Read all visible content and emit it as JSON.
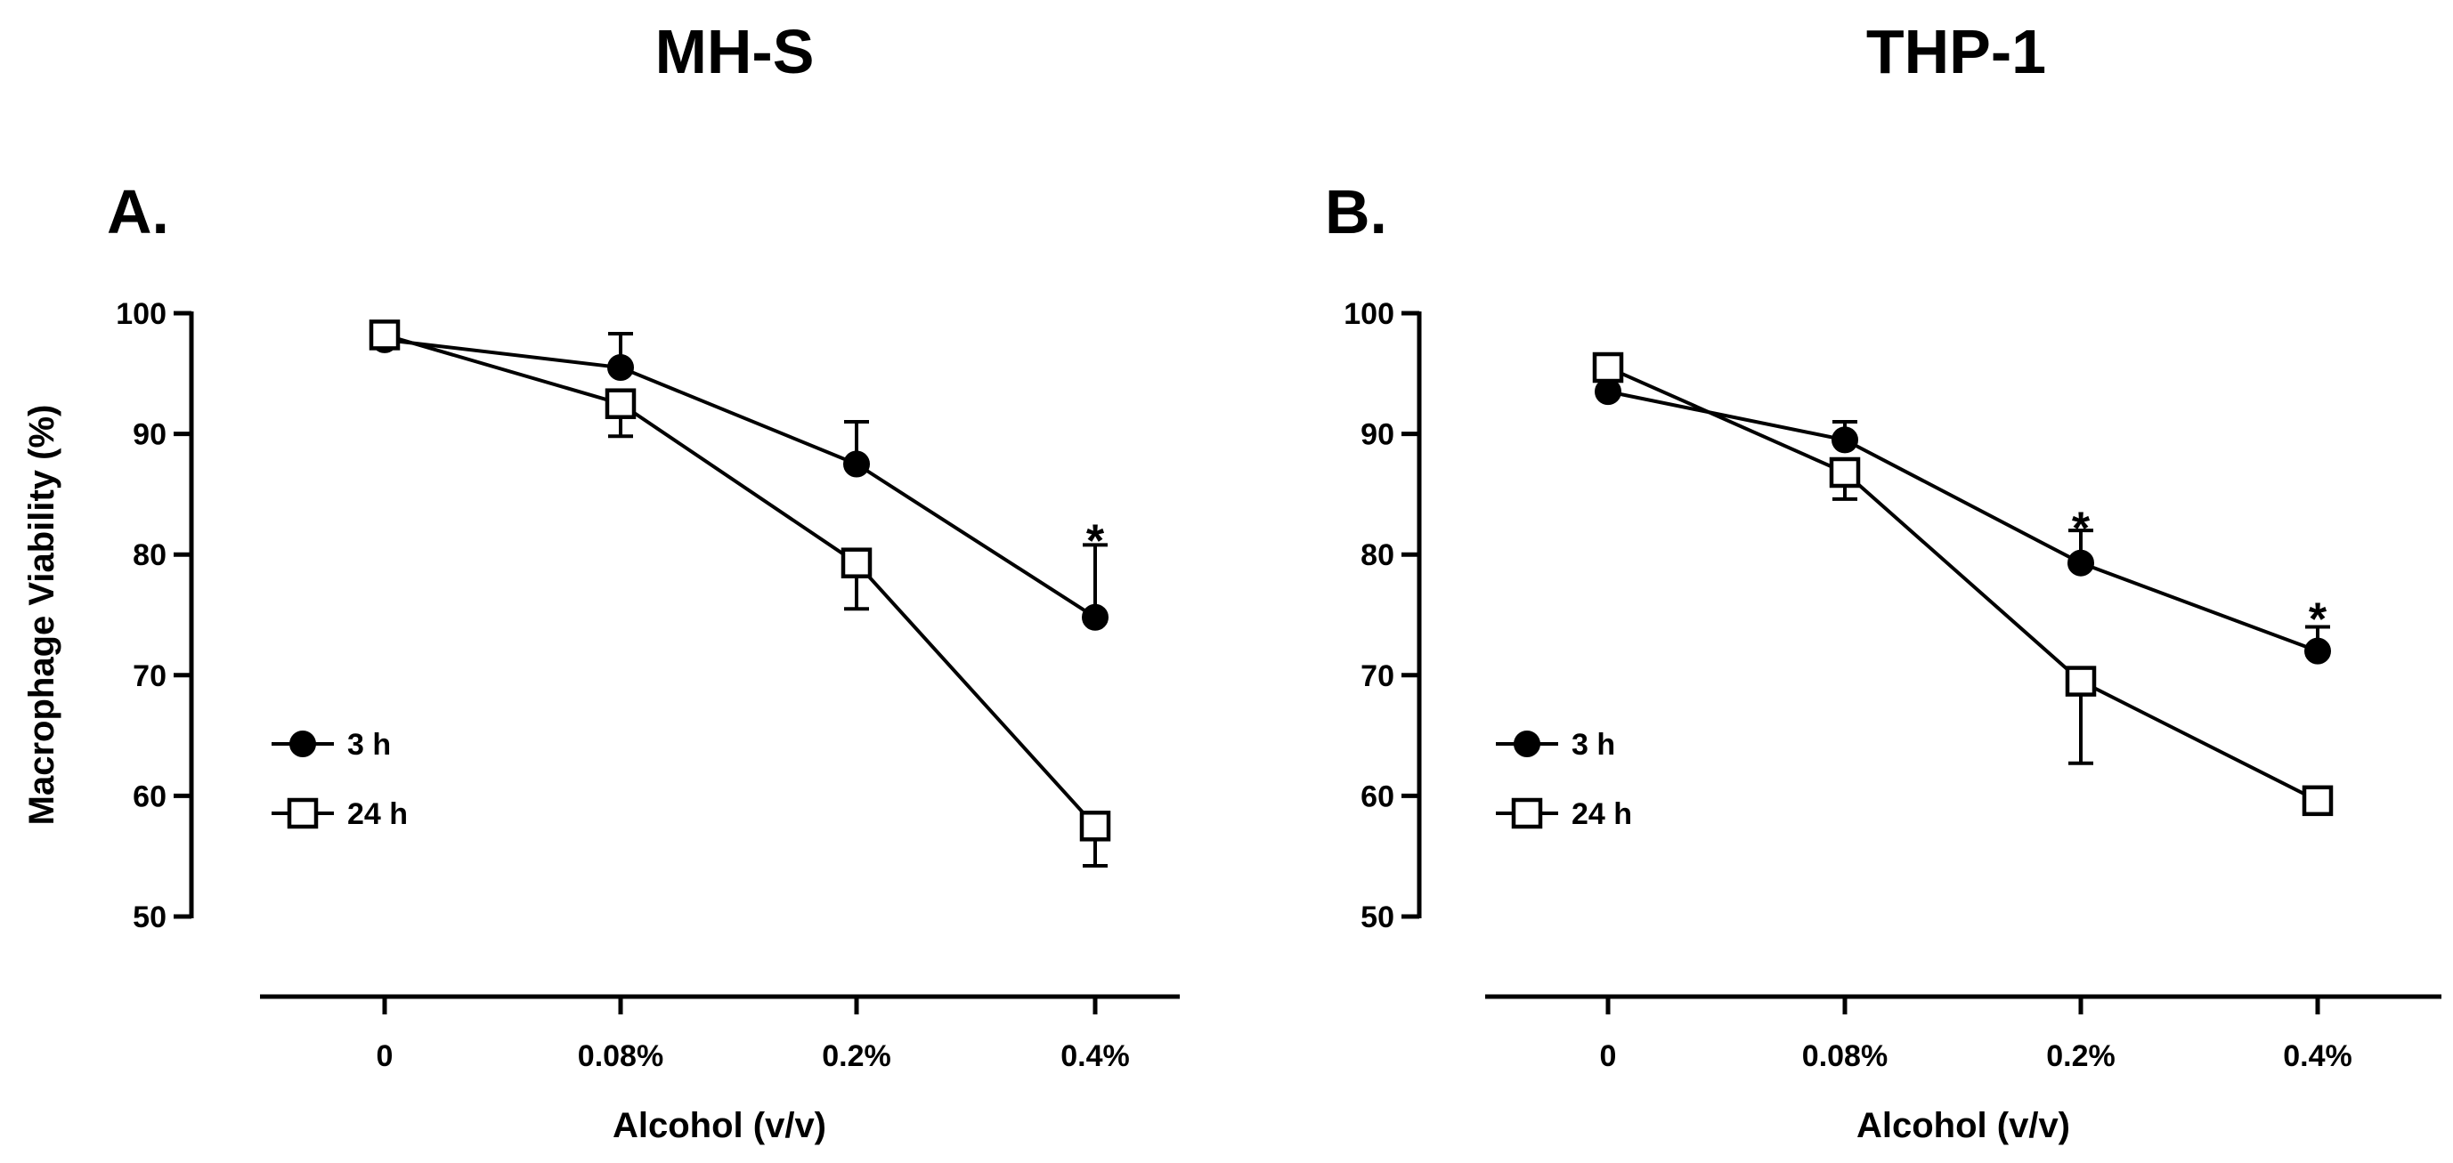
{
  "chart_data": [
    {
      "type": "line",
      "panel": "A.",
      "title": "MH-S",
      "xlabel": "Alcohol (v/v)",
      "ylabel": "Macrophage Viability (%)",
      "categories": [
        "0",
        "0.08%",
        "0.2%",
        "0.4%"
      ],
      "ylim": [
        50,
        100
      ],
      "yticks": [
        "50",
        "60",
        "70",
        "80",
        "90",
        "100"
      ],
      "legend_position": "lower-left",
      "series": [
        {
          "name": "3 h",
          "marker": "filled-circle",
          "values": [
            97.8,
            95.5,
            87.5,
            74.8
          ],
          "err_up": [
            1.5,
            2.8,
            3.5,
            6.0
          ],
          "err_down": [
            0,
            0,
            0,
            0
          ]
        },
        {
          "name": "24 h",
          "marker": "open-square",
          "values": [
            98.2,
            92.5,
            79.3,
            57.5
          ],
          "err_up": [
            0,
            0,
            0,
            0
          ],
          "err_down": [
            1.0,
            2.7,
            3.8,
            3.3
          ]
        }
      ],
      "annotations": [
        {
          "text": "*",
          "category": "0.4%",
          "y": 82.5
        }
      ]
    },
    {
      "type": "line",
      "panel": "B.",
      "title": "THP-1",
      "xlabel": "Alcohol (v/v)",
      "ylabel": "",
      "categories": [
        "0",
        "0.08%",
        "0.2%",
        "0.4%"
      ],
      "ylim": [
        50,
        100
      ],
      "yticks": [
        "50",
        "60",
        "70",
        "80",
        "90",
        "100"
      ],
      "legend_position": "lower-left",
      "series": [
        {
          "name": "3 h",
          "marker": "filled-circle",
          "values": [
            93.5,
            89.5,
            79.3,
            72.0
          ],
          "err_up": [
            0,
            1.5,
            2.7,
            2.0
          ],
          "err_down": [
            0,
            0,
            0,
            0
          ]
        },
        {
          "name": "24 h",
          "marker": "open-square",
          "values": [
            95.5,
            86.8,
            69.5,
            59.6
          ],
          "err_up": [
            0,
            0,
            0,
            0
          ],
          "err_down": [
            0,
            2.2,
            6.8,
            0.5
          ]
        }
      ],
      "annotations": [
        {
          "text": "*",
          "category": "0.2%",
          "y": 83.5
        },
        {
          "text": "*",
          "category": "0.4%",
          "y": 76.0
        }
      ]
    }
  ]
}
